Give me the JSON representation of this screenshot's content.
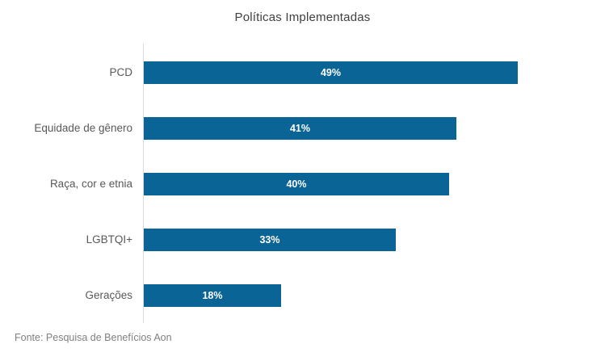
{
  "chart_data": {
    "type": "bar",
    "orientation": "horizontal",
    "title": "Políticas Implementadas",
    "categories": [
      "PCD",
      "Equidade de gênero",
      "Raça, cor e etnia",
      "LGBTQI+",
      "Gerações"
    ],
    "values": [
      49,
      41,
      40,
      33,
      18
    ],
    "value_labels": [
      "49%",
      "41%",
      "40%",
      "33%",
      "18%"
    ],
    "xlabel": "",
    "ylabel": "",
    "xlim": [
      0,
      60
    ],
    "unit": "%",
    "grid": "off",
    "legend": "none",
    "value_label_position": "inside-center"
  },
  "footer": {
    "source": "Fonte: Pesquisa de Benefícios Aon"
  },
  "colors": {
    "bar": "#0A6496",
    "value_label": "#FFFFFF",
    "title_text": "#404040",
    "category_text": "#595959",
    "source_text": "#808080",
    "axis_line": "#D9D9D9",
    "background": "#FFFFFF"
  }
}
